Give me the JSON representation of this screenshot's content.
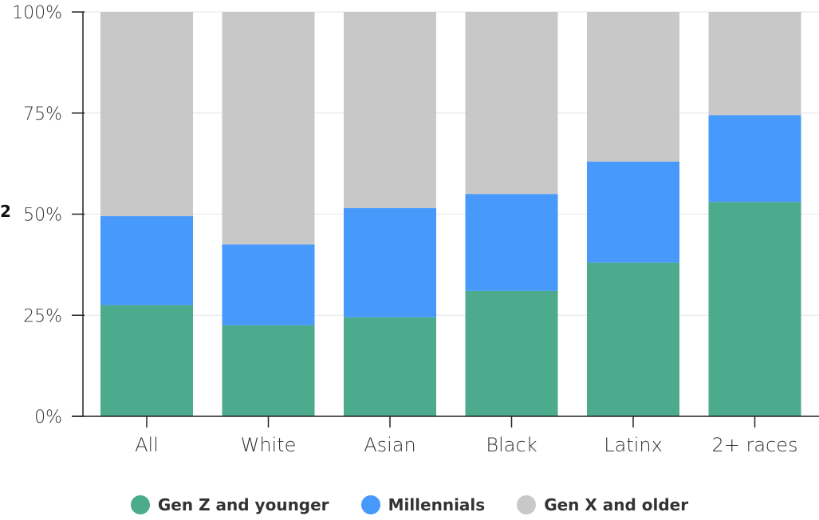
{
  "chart_data": {
    "type": "bar",
    "stacked": true,
    "categories": [
      "All",
      "White",
      "Asian",
      "Black",
      "Latinx",
      "2+ races"
    ],
    "series": [
      {
        "name": "Gen Z and younger",
        "color": "#4bab8c",
        "values": [
          27.5,
          22.5,
          24.5,
          31,
          38,
          53
        ]
      },
      {
        "name": "Millennials",
        "color": "#4899fc",
        "values": [
          22,
          20,
          27,
          24,
          25,
          21.5
        ]
      },
      {
        "name": "Gen X and older",
        "color": "#c8c8c8",
        "values": [
          50.5,
          57.5,
          48.5,
          45,
          37,
          25.5
        ]
      }
    ],
    "yticks": [
      "0%",
      "25%",
      "50%",
      "75%",
      "100%"
    ],
    "ylim": [
      0,
      100
    ],
    "grid": true,
    "legend_position": "bottom-center",
    "side_text": "2"
  }
}
